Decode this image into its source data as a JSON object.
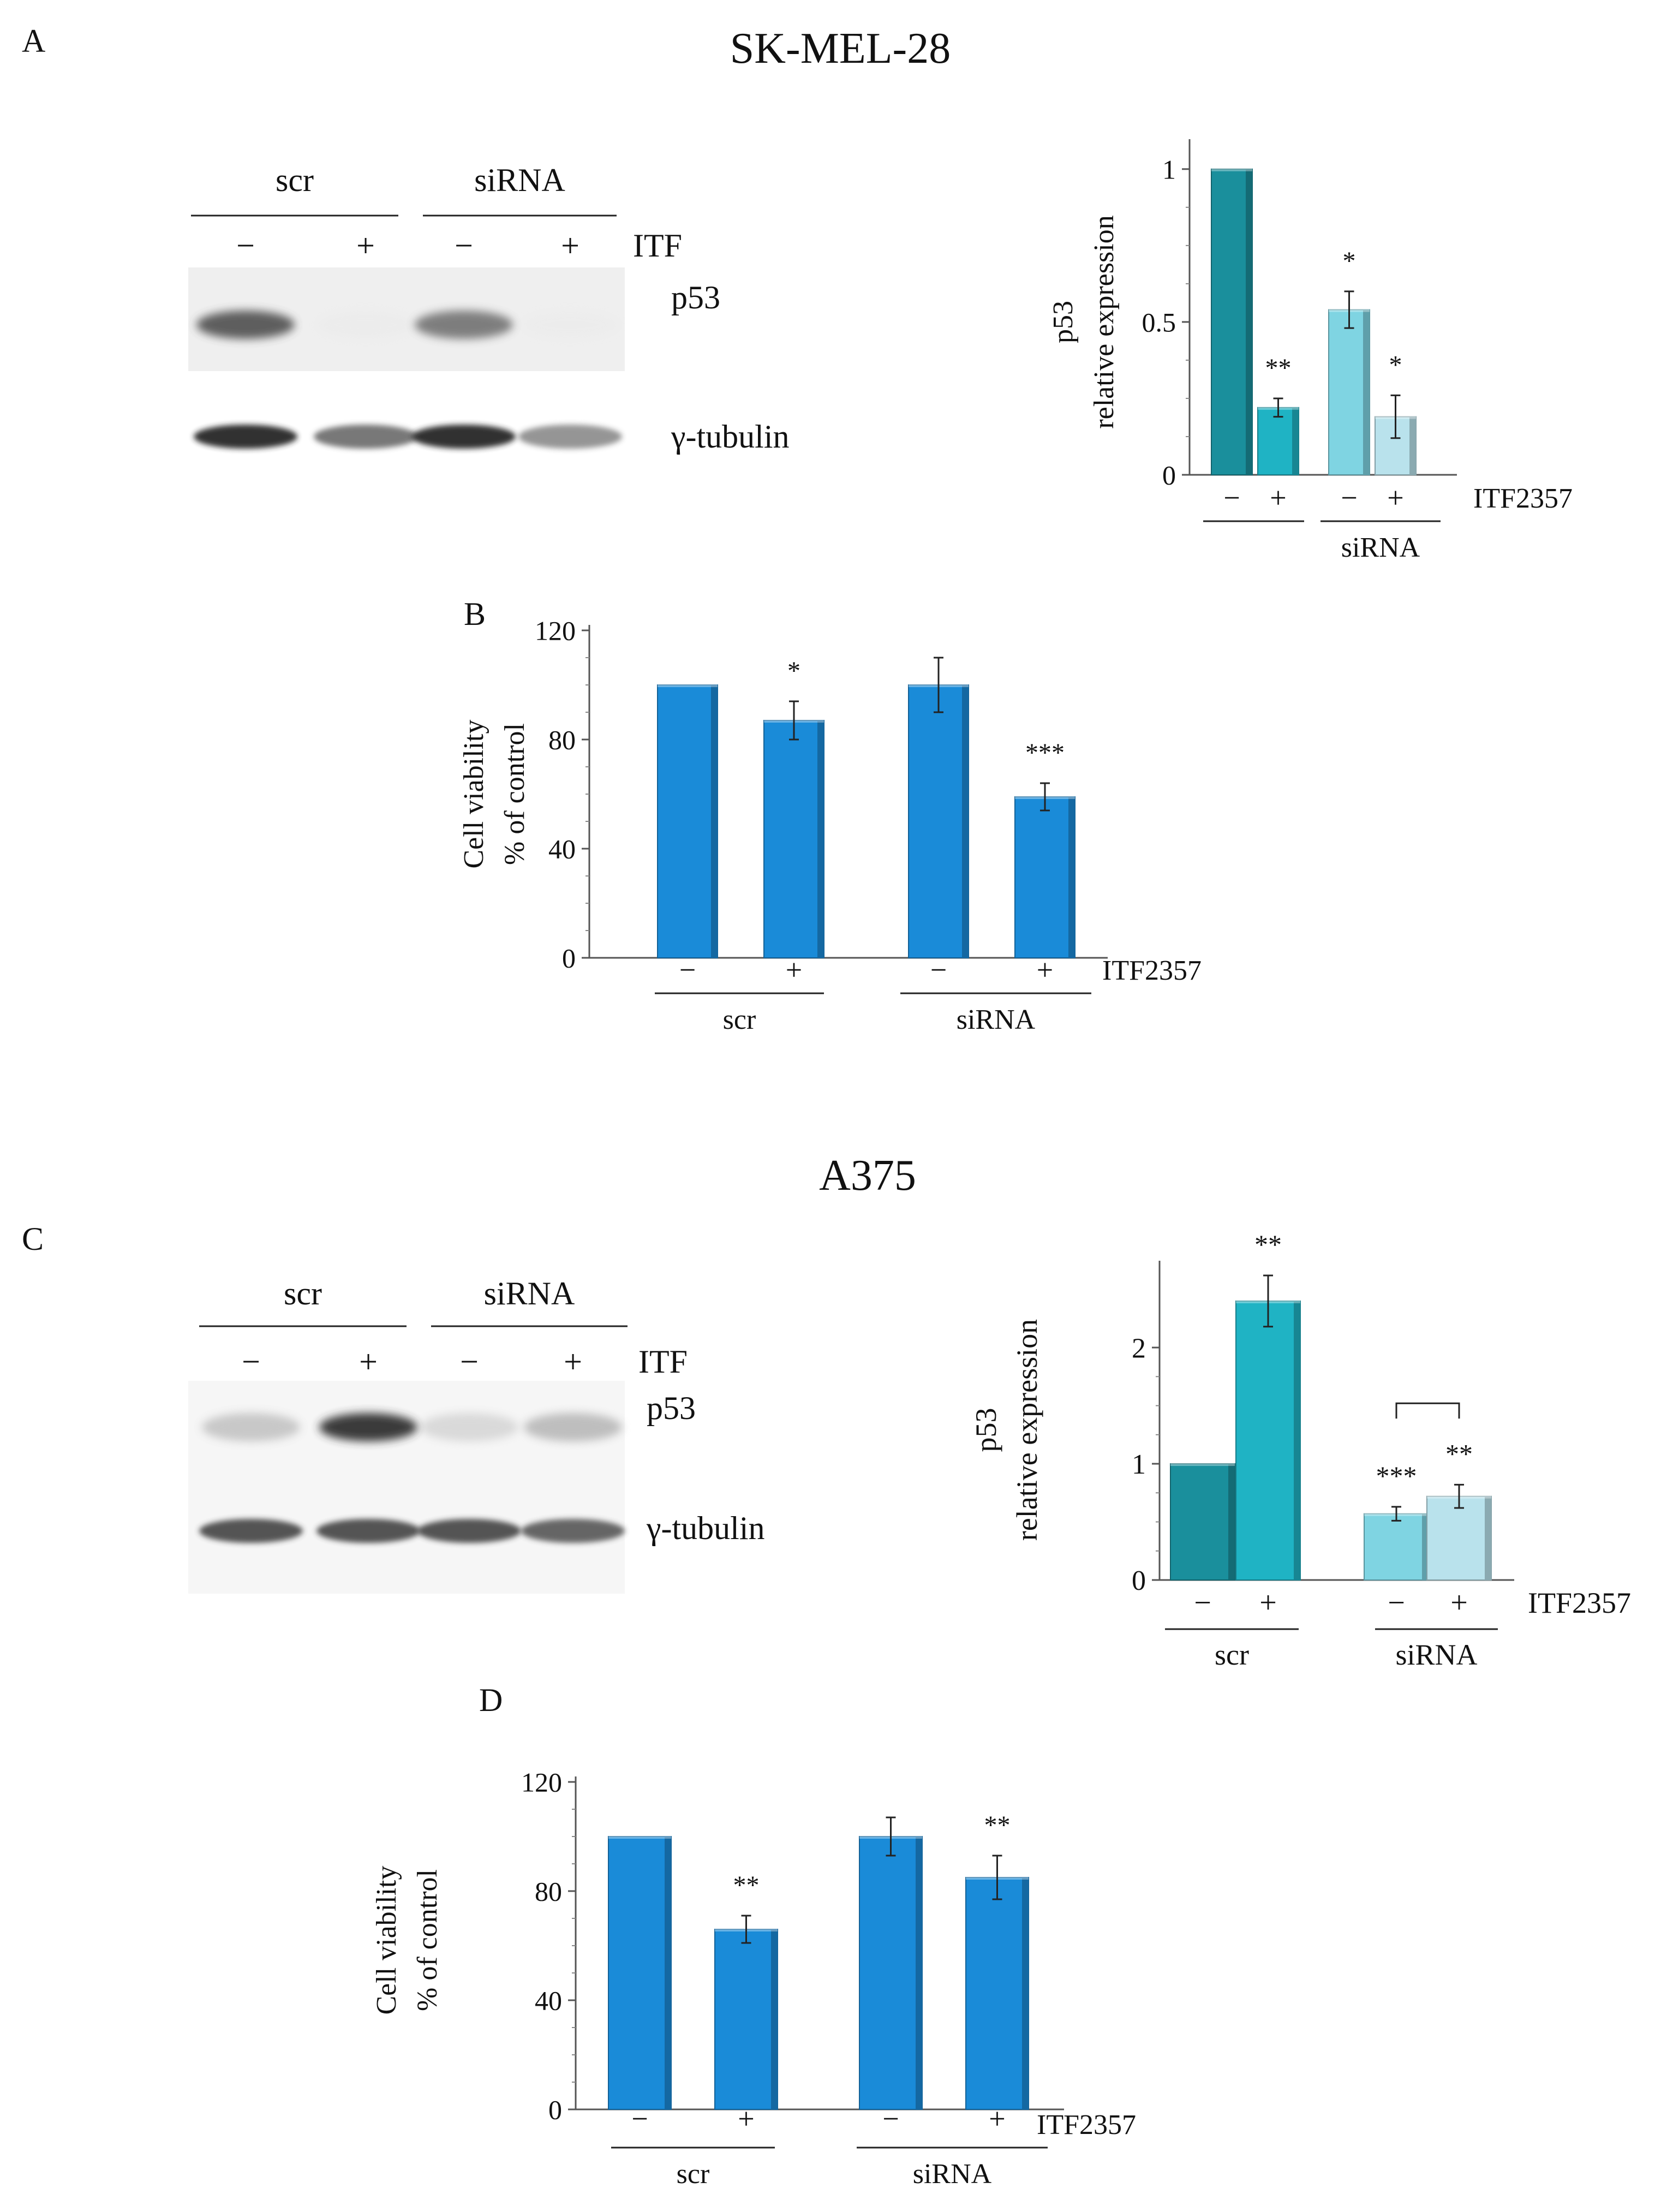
{
  "figure": {
    "panel_labels": {
      "a": "A",
      "b": "B",
      "c": "C",
      "d": "D"
    },
    "titles": {
      "top": "SK-MEL-28",
      "bottom": "A375"
    }
  },
  "blots": {
    "a": {
      "groups": [
        "scr",
        "siRNA"
      ],
      "treatment_label": "ITF",
      "lane_signs": [
        "−",
        "+",
        "−",
        "+"
      ],
      "bands": [
        "p53",
        "γ-tubulin"
      ],
      "p53_intensity": [
        0.85,
        0.05,
        0.75,
        0.03
      ],
      "tubulin_intensity": [
        0.95,
        0.75,
        0.95,
        0.65
      ]
    },
    "c": {
      "groups": [
        "scr",
        "siRNA"
      ],
      "treatment_label": "ITF",
      "lane_signs": [
        "−",
        "+",
        "−",
        "+"
      ],
      "bands": [
        "p53",
        "γ-tubulin"
      ],
      "p53_intensity": [
        0.45,
        0.95,
        0.35,
        0.5
      ],
      "tubulin_intensity": [
        0.85,
        0.85,
        0.85,
        0.8
      ]
    }
  },
  "colors": {
    "dark_teal": "#1a8f9c",
    "teal": "#1fb3c4",
    "light_teal": "#7fd4e2",
    "pale_teal": "#b9e2ec",
    "blue": "#1a8bd8",
    "blue_dark": "#0c5fa8"
  },
  "chart_data": [
    {
      "id": "a",
      "type": "bar",
      "ylabel": [
        "p53",
        "relative expression"
      ],
      "yticks": [
        0,
        0.5,
        1
      ],
      "ylim": [
        0,
        1.08
      ],
      "categories": [
        "−",
        "+",
        "−",
        "+"
      ],
      "treatment_label": "ITF2357",
      "groups": [
        {
          "label": "",
          "bars": [
            0,
            1
          ]
        },
        {
          "label": "siRNA",
          "bars": [
            2,
            3
          ]
        }
      ],
      "values": [
        1.0,
        0.22,
        0.54,
        0.19
      ],
      "errors": [
        0,
        0.03,
        0.06,
        0.07
      ],
      "significance": [
        "",
        "**",
        "*",
        "*"
      ],
      "colors": [
        "#1a8f9c",
        "#1fb3c4",
        "#7fd4e2",
        "#b9e2ec"
      ],
      "bracket": null
    },
    {
      "id": "b",
      "type": "bar",
      "ylabel": [
        "Cell viability",
        "% of control"
      ],
      "yticks": [
        0,
        40,
        80,
        120
      ],
      "ylim": [
        0,
        120
      ],
      "categories": [
        "−",
        "+",
        "−",
        "+"
      ],
      "treatment_label": "ITF2357",
      "groups": [
        {
          "label": "scr",
          "bars": [
            0,
            1
          ]
        },
        {
          "label": "siRNA",
          "bars": [
            2,
            3
          ]
        }
      ],
      "values": [
        100,
        87,
        100,
        59
      ],
      "errors": [
        0,
        7,
        10,
        5
      ],
      "significance": [
        "",
        "*",
        "",
        "***"
      ],
      "colors": [
        "#1a8bd8",
        "#1a8bd8",
        "#1a8bd8",
        "#1a8bd8"
      ],
      "bracket": null
    },
    {
      "id": "c",
      "type": "bar",
      "ylabel": [
        "p53",
        "relative expression"
      ],
      "yticks": [
        0,
        1,
        2
      ],
      "ylim": [
        0,
        2.7
      ],
      "categories": [
        "−",
        "+",
        "−",
        "+"
      ],
      "treatment_label": "ITF2357",
      "groups": [
        {
          "label": "scr",
          "bars": [
            0,
            1
          ]
        },
        {
          "label": "siRNA",
          "bars": [
            2,
            3
          ]
        }
      ],
      "values": [
        1.0,
        2.4,
        0.57,
        0.72
      ],
      "errors": [
        0,
        0.22,
        0.06,
        0.1
      ],
      "significance": [
        "",
        "**",
        "***",
        "**"
      ],
      "colors": [
        "#1a8f9c",
        "#1fb3c4",
        "#7fd4e2",
        "#b9e2ec"
      ],
      "bracket": [
        2,
        3
      ]
    },
    {
      "id": "d",
      "type": "bar",
      "ylabel": [
        "Cell viability",
        "% of control"
      ],
      "yticks": [
        0,
        40,
        80,
        120
      ],
      "ylim": [
        0,
        120
      ],
      "categories": [
        "−",
        "+",
        "−",
        "+"
      ],
      "treatment_label": "ITF2357",
      "groups": [
        {
          "label": "scr",
          "bars": [
            0,
            1
          ]
        },
        {
          "label": "siRNA",
          "bars": [
            2,
            3
          ]
        }
      ],
      "values": [
        100,
        66,
        100,
        85
      ],
      "errors": [
        0,
        5,
        7,
        8
      ],
      "significance": [
        "",
        "**",
        "",
        "**"
      ],
      "colors": [
        "#1a8bd8",
        "#1a8bd8",
        "#1a8bd8",
        "#1a8bd8"
      ],
      "bracket": null
    }
  ]
}
